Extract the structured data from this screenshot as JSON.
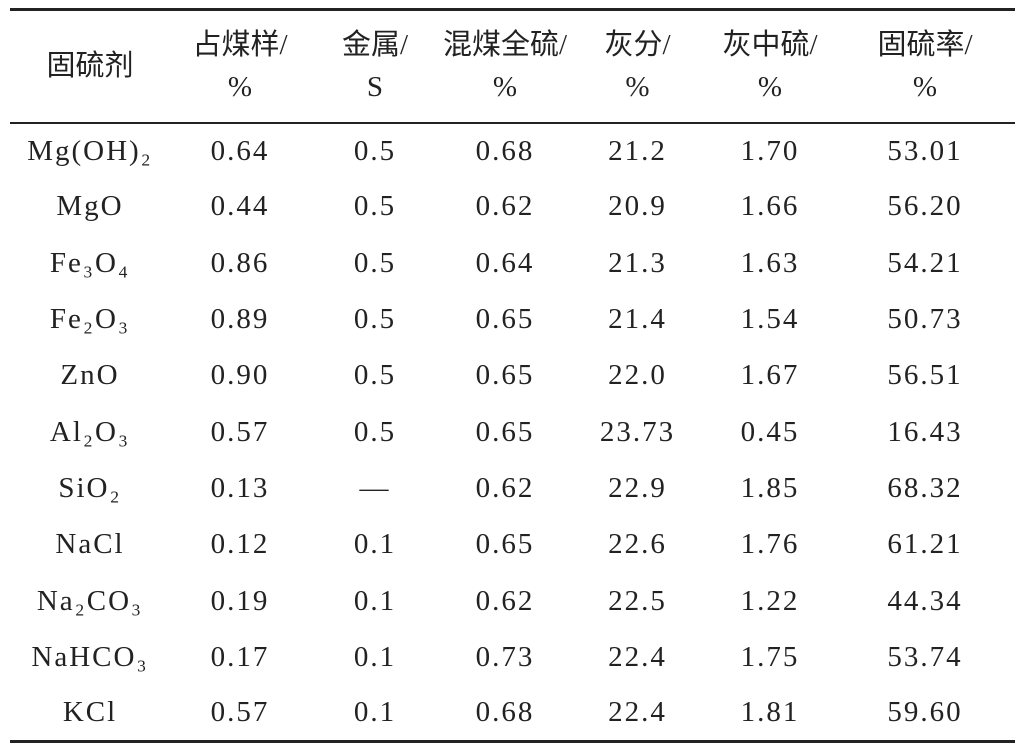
{
  "table": {
    "header": [
      "固硫剂",
      "占煤样/\n%",
      "金属/\nS",
      "混煤全硫/\n%",
      "灰分/\n%",
      "灰中硫/\n%",
      "固硫率/\n%"
    ],
    "rows": [
      [
        "Mg(OH)₂",
        "0.64",
        "0.5",
        "0.68",
        "21.2",
        "1.70",
        "53.01"
      ],
      [
        "MgO",
        "0.44",
        "0.5",
        "0.62",
        "20.9",
        "1.66",
        "56.20"
      ],
      [
        "Fe₃O₄",
        "0.86",
        "0.5",
        "0.64",
        "21.3",
        "1.63",
        "54.21"
      ],
      [
        "Fe₂O₃",
        "0.89",
        "0.5",
        "0.65",
        "21.4",
        "1.54",
        "50.73"
      ],
      [
        "ZnO",
        "0.90",
        "0.5",
        "0.65",
        "22.0",
        "1.67",
        "56.51"
      ],
      [
        "Al₂O₃",
        "0.57",
        "0.5",
        "0.65",
        "23.73",
        "0.45",
        "16.43"
      ],
      [
        "SiO₂",
        "0.13",
        "—",
        "0.62",
        "22.9",
        "1.85",
        "68.32"
      ],
      [
        "NaCl",
        "0.12",
        "0.1",
        "0.65",
        "22.6",
        "1.76",
        "61.21"
      ],
      [
        "Na₂CO₃",
        "0.19",
        "0.1",
        "0.62",
        "22.5",
        "1.22",
        "44.34"
      ],
      [
        "NaHCO₃",
        "0.17",
        "0.1",
        "0.73",
        "22.4",
        "1.75",
        "53.74"
      ],
      [
        "KCl",
        "0.57",
        "0.1",
        "0.68",
        "22.4",
        "1.81",
        "59.60"
      ]
    ]
  }
}
